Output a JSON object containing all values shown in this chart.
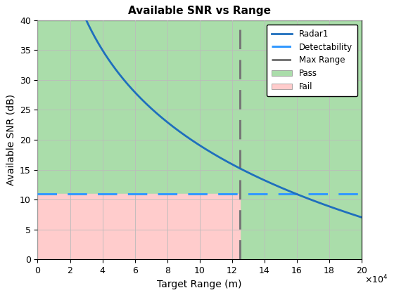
{
  "title": "Available SNR vs Range",
  "xlabel": "Target Range (m)",
  "ylabel": "Available SNR (dB)",
  "xlim": [
    0,
    200000
  ],
  "ylim": [
    0,
    40
  ],
  "xtick_values": [
    0,
    20000,
    40000,
    60000,
    80000,
    100000,
    120000,
    140000,
    160000,
    180000,
    200000
  ],
  "xtick_labels": [
    "0",
    "2",
    "4",
    "6",
    "8",
    "10",
    "12",
    "14",
    "16",
    "18",
    "20"
  ],
  "ytick_values": [
    0,
    5,
    10,
    15,
    20,
    25,
    30,
    35,
    40
  ],
  "snr_ref_range": 30000,
  "snr_ref_value": 40,
  "detectability_level": 11,
  "max_range": 125000,
  "radar_color": "#1f6fbd",
  "detectability_color": "#3399FF",
  "max_range_color": "#777777",
  "pass_color": "#aaddaa",
  "fail_color": "#ffcccc",
  "figsize": [
    5.6,
    4.2
  ],
  "dpi": 100
}
